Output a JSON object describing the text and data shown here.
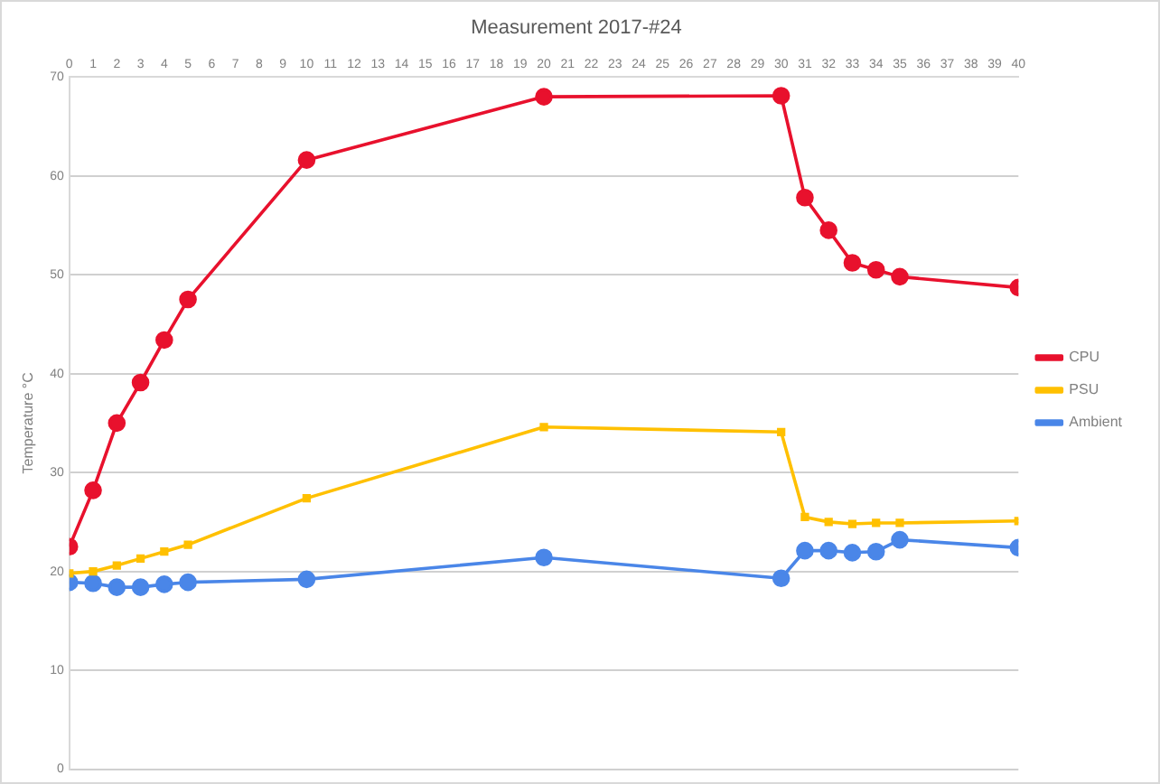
{
  "chart_data": {
    "type": "line",
    "title": "Measurement 2017-#24",
    "ylabel": "Temperature °C",
    "x": [
      0,
      1,
      2,
      3,
      4,
      5,
      10,
      20,
      30,
      31,
      32,
      33,
      34,
      35,
      40
    ],
    "xlim": [
      0,
      40
    ],
    "xticks": [
      0,
      1,
      2,
      3,
      4,
      5,
      6,
      7,
      8,
      9,
      10,
      11,
      12,
      13,
      14,
      15,
      16,
      17,
      18,
      19,
      20,
      21,
      22,
      23,
      24,
      25,
      26,
      27,
      28,
      29,
      30,
      31,
      32,
      33,
      34,
      35,
      36,
      37,
      38,
      39,
      40
    ],
    "ylim": [
      0,
      70
    ],
    "yticks": [
      0,
      10,
      20,
      30,
      40,
      50,
      60,
      70
    ],
    "grid": "y",
    "legend": "right",
    "marker": "circle",
    "line_style": "solid",
    "series": [
      {
        "name": "CPU",
        "color": "#e8112d",
        "values": [
          22.5,
          28.2,
          35.0,
          39.1,
          43.4,
          47.5,
          61.6,
          68.0,
          68.1,
          57.8,
          54.5,
          51.2,
          50.5,
          49.8,
          48.7
        ]
      },
      {
        "name": "PSU",
        "color": "#ffc000",
        "marker": "square",
        "values": [
          19.8,
          20.0,
          20.6,
          21.3,
          22.0,
          22.7,
          27.4,
          34.6,
          34.1,
          25.5,
          25.0,
          24.8,
          24.9,
          24.9,
          25.1
        ]
      },
      {
        "name": "Ambient",
        "color": "#4a86e8",
        "values": [
          18.9,
          18.8,
          18.4,
          18.4,
          18.7,
          18.9,
          19.2,
          21.4,
          19.3,
          22.1,
          22.1,
          21.9,
          22.0,
          23.2,
          22.4
        ]
      }
    ]
  }
}
